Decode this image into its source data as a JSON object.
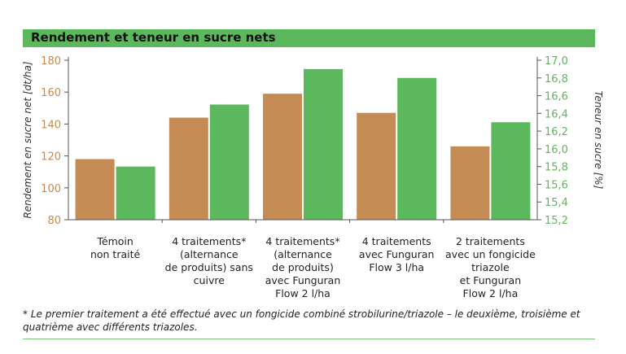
{
  "chart_data": {
    "type": "bar",
    "title": "Rendement et teneur en sucre nets",
    "categories": [
      [
        "Témoin",
        "non traité"
      ],
      [
        "4 traitements*",
        "(alternance",
        "de produits) sans",
        "cuivre"
      ],
      [
        "4 traitements*",
        "(alternance",
        "de produits)",
        "avec Funguran",
        "Flow 2 l/ha"
      ],
      [
        "4 traitements",
        "avec Funguran",
        "Flow 3 l/ha"
      ],
      [
        "2 traitements",
        "avec un fongicide",
        "triazole",
        "et Funguran",
        "Flow 2 l/ha"
      ]
    ],
    "series": [
      {
        "values": [
          118,
          144,
          159,
          147,
          126
        ],
        "color": "#c48c54",
        "axis": "left"
      },
      {
        "values": [
          15.8,
          16.5,
          16.9,
          16.8,
          16.3
        ],
        "color": "#5cb85c",
        "axis": "right"
      }
    ],
    "ylabel": "Rendement en sucre net [dt/ha]",
    "ylim": [
      80,
      180
    ],
    "yticks": [
      80,
      100,
      120,
      140,
      160,
      180
    ],
    "ylabel_color": "#c48c54",
    "y2label": "Teneur en sucre [%]",
    "y2lim": [
      15.2,
      17.0
    ],
    "y2ticks": [
      "15,2",
      "15,4",
      "15,6",
      "15,8",
      "16,0",
      "16,2",
      "16,4",
      "16,6",
      "16,8",
      "17,0"
    ],
    "y2label_color": "#5cb85c",
    "grid": false,
    "legend": "none"
  },
  "footnote": "* Le premier traitement a été effectué avec un fongicide combiné strobilurine/triazole – le deuxième, troisième et quatrième avec différents triazoles."
}
